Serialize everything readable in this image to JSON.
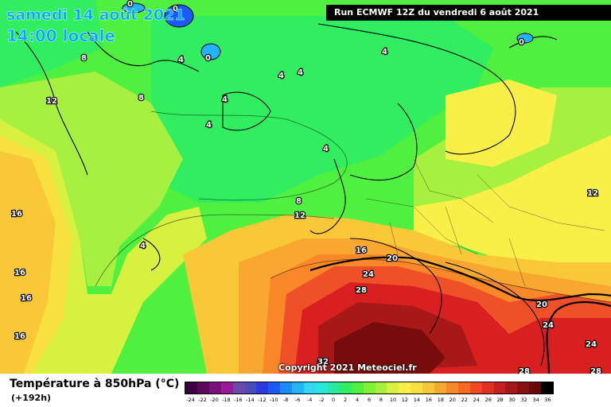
{
  "title": {
    "date": "samedi 14 août 2021",
    "time": "14:00 locale"
  },
  "run_label": "Run ECMWF 12Z du vendredi 6 août 2021",
  "copyright": "Copyright 2021 Meteociel.fr",
  "variable_label": "Température à 850hPa (°C)",
  "forecast_hours": "(+192h)",
  "legend": {
    "ticks": [
      "-24",
      "-22",
      "-20",
      "-18",
      "-16",
      "-14",
      "-12",
      "-10",
      "-8",
      "-6",
      "-4",
      "-2",
      "0",
      "2",
      "4",
      "6",
      "8",
      "10",
      "12",
      "14",
      "16",
      "18",
      "20",
      "22",
      "24",
      "26",
      "28",
      "30",
      "32",
      "34",
      "36"
    ],
    "colors": [
      "#3c003c",
      "#5a0a5a",
      "#7a107a",
      "#9a189a",
      "#6a4aa8",
      "#4a4ab8",
      "#2a3adf",
      "#1a5aff",
      "#1a8aff",
      "#20b4ff",
      "#30d8ff",
      "#28e8d8",
      "#28e8a0",
      "#30ee60",
      "#50f040",
      "#80f030",
      "#a8f040",
      "#d8f040",
      "#f8f048",
      "#f8e040",
      "#f8c838",
      "#f8a830",
      "#f88828",
      "#f86820",
      "#f04820",
      "#e03020",
      "#c82020",
      "#a81818",
      "#881010",
      "#680808",
      "#000000"
    ]
  },
  "contour_labels": [
    {
      "text": "0"
    },
    {
      "text": "0"
    },
    {
      "text": "0"
    },
    {
      "text": "8"
    },
    {
      "text": "4"
    },
    {
      "text": "0"
    },
    {
      "text": "4"
    },
    {
      "text": "4"
    },
    {
      "text": "4"
    },
    {
      "text": "8"
    },
    {
      "text": "12"
    },
    {
      "text": "4"
    },
    {
      "text": "4"
    },
    {
      "text": "4"
    },
    {
      "text": "16"
    },
    {
      "text": "8"
    },
    {
      "text": "12"
    },
    {
      "text": "12"
    },
    {
      "text": "4"
    },
    {
      "text": "16"
    },
    {
      "text": "20"
    },
    {
      "text": "24"
    },
    {
      "text": "16"
    },
    {
      "text": "16"
    },
    {
      "text": "28"
    },
    {
      "text": "16"
    },
    {
      "text": "20"
    },
    {
      "text": "24"
    },
    {
      "text": "24"
    },
    {
      "text": "32"
    },
    {
      "text": "28"
    },
    {
      "text": "28"
    }
  ]
}
